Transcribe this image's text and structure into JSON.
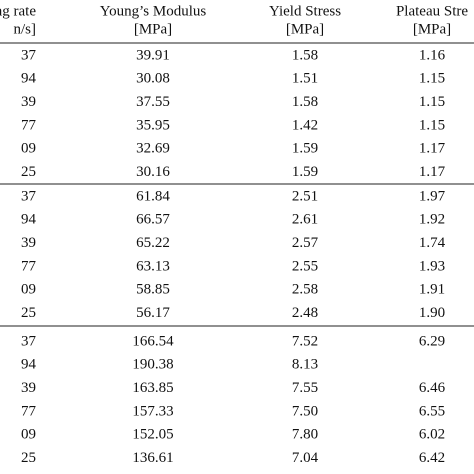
{
  "table": {
    "header": [
      [
        "ng rate",
        "Young’s Modulus",
        "Yield Stress",
        "Plateau Stre"
      ],
      [
        "n/s]",
        "[MPa]",
        "[MPa]",
        "[MPa]"
      ]
    ],
    "groups": [
      [
        [
          "37",
          "39.91",
          "1.58",
          "1.16"
        ],
        [
          "94",
          "30.08",
          "1.51",
          "1.15"
        ],
        [
          "39",
          "37.55",
          "1.58",
          "1.15"
        ],
        [
          "77",
          "35.95",
          "1.42",
          "1.15"
        ],
        [
          "09",
          "32.69",
          "1.59",
          "1.17"
        ],
        [
          "25",
          "30.16",
          "1.59",
          "1.17"
        ]
      ],
      [
        [
          "37",
          "61.84",
          "2.51",
          "1.97"
        ],
        [
          "94",
          "66.57",
          "2.61",
          "1.92"
        ],
        [
          "39",
          "65.22",
          "2.57",
          "1.74"
        ],
        [
          "77",
          "63.13",
          "2.55",
          "1.93"
        ],
        [
          "09",
          "58.85",
          "2.58",
          "1.91"
        ],
        [
          "25",
          "56.17",
          "2.48",
          "1.90"
        ]
      ],
      [
        [
          "37",
          "166.54",
          "7.52",
          "6.29"
        ],
        [
          "94",
          "190.38",
          "8.13",
          null
        ],
        [
          "39",
          "163.85",
          "7.55",
          "6.46"
        ],
        [
          "77",
          "157.33",
          "7.50",
          "6.55"
        ],
        [
          "09",
          "152.05",
          "7.80",
          "6.02"
        ],
        [
          "25",
          "136.61",
          "7.04",
          "6.42"
        ]
      ]
    ]
  }
}
